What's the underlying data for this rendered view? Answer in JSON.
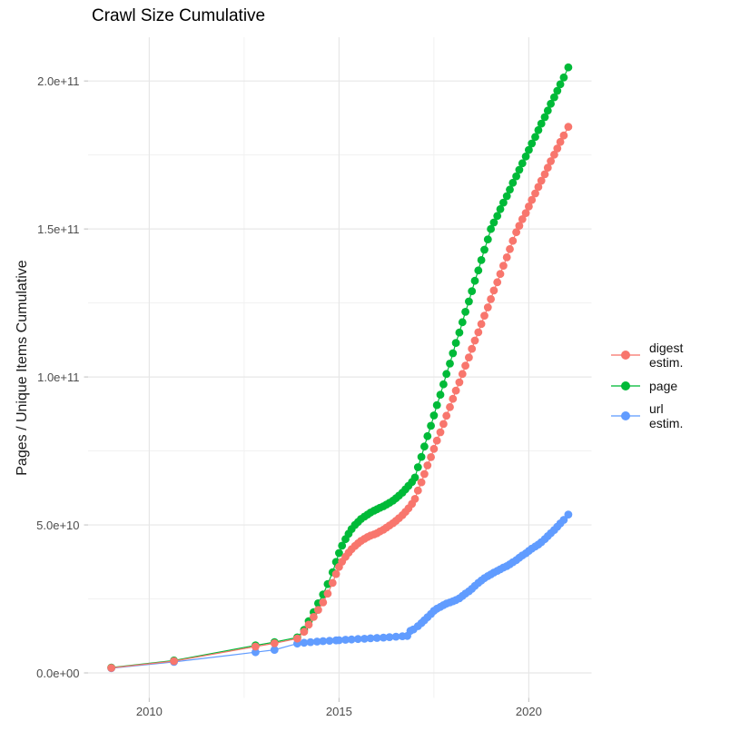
{
  "title": "Crawl Size Cumulative",
  "y_axis": {
    "label": "Pages / Unique Items Cumulative",
    "tick_labels": [
      "0.0e+00",
      "5.0e+10",
      "1.0e+11",
      "1.5e+11",
      "2.0e+11"
    ],
    "tick_values_billions": [
      0,
      50,
      100,
      150,
      200
    ],
    "minor_values_billions": [
      25,
      75,
      125,
      175
    ]
  },
  "x_axis": {
    "tick_labels": [
      "2010",
      "2015",
      "2020"
    ],
    "tick_values": [
      2010,
      2015,
      2020
    ],
    "minor_values": [
      2012.5,
      2017.5
    ]
  },
  "legend": {
    "items": [
      {
        "label": "digest estim.",
        "color": "#F8766D"
      },
      {
        "label": "page",
        "color": "#00BA38"
      },
      {
        "label": "url estim.",
        "color": "#619CFF"
      }
    ]
  },
  "colors": {
    "grid_major": "#e7e7e7",
    "grid_minor": "#f1f1f1",
    "axis_tick": "#c9c9c9",
    "axis_text": "#4d4d4d",
    "digest": "#F8766D",
    "page": "#00BA38",
    "url": "#619CFF"
  },
  "chart_data": {
    "type": "scatter",
    "note": "cumulative crawl size; x = calendar year (fraction), y in billions (1e9) of pages / unique items",
    "xlim": [
      2008.4,
      2021.7
    ],
    "ylim_billions": [
      -10,
      215
    ],
    "grid": "on",
    "legend_position": "right",
    "series": [
      {
        "name": "digest estim.",
        "color": "#F8766D",
        "points": [
          [
            2009.0,
            1.7
          ],
          [
            2010.65,
            4.0
          ],
          [
            2012.8,
            8.9
          ],
          [
            2013.3,
            10.0
          ],
          [
            2013.9,
            11.6
          ],
          [
            2014.08,
            13.9
          ],
          [
            2014.2,
            16.3
          ],
          [
            2014.33,
            18.9
          ],
          [
            2014.45,
            21.3
          ],
          [
            2014.58,
            23.8
          ],
          [
            2014.7,
            26.8
          ],
          [
            2014.83,
            30.4
          ],
          [
            2014.92,
            33.4
          ],
          [
            2015.0,
            35.8
          ],
          [
            2015.08,
            37.6
          ],
          [
            2015.17,
            39.2
          ],
          [
            2015.25,
            40.6
          ],
          [
            2015.33,
            41.8
          ],
          [
            2015.42,
            42.9
          ],
          [
            2015.5,
            43.8
          ],
          [
            2015.58,
            44.6
          ],
          [
            2015.67,
            45.3
          ],
          [
            2015.75,
            45.9
          ],
          [
            2015.83,
            46.4
          ],
          [
            2015.92,
            46.8
          ],
          [
            2016.0,
            47.2
          ],
          [
            2016.08,
            47.8
          ],
          [
            2016.17,
            48.4
          ],
          [
            2016.25,
            49.1
          ],
          [
            2016.33,
            49.8
          ],
          [
            2016.42,
            50.6
          ],
          [
            2016.5,
            51.4
          ],
          [
            2016.58,
            52.3
          ],
          [
            2016.67,
            53.3
          ],
          [
            2016.75,
            54.4
          ],
          [
            2016.83,
            55.6
          ],
          [
            2016.92,
            57.1
          ],
          [
            2017.0,
            58.8
          ],
          [
            2017.08,
            61.6
          ],
          [
            2017.17,
            64.4
          ],
          [
            2017.25,
            67.2
          ],
          [
            2017.33,
            70.1
          ],
          [
            2017.42,
            72.9
          ],
          [
            2017.5,
            75.7
          ],
          [
            2017.58,
            78.5
          ],
          [
            2017.67,
            81.3
          ],
          [
            2017.75,
            84.1
          ],
          [
            2017.83,
            86.9
          ],
          [
            2017.92,
            89.8
          ],
          [
            2018.0,
            92.6
          ],
          [
            2018.08,
            95.4
          ],
          [
            2018.17,
            98.2
          ],
          [
            2018.25,
            101.0
          ],
          [
            2018.33,
            103.8
          ],
          [
            2018.42,
            106.6
          ],
          [
            2018.5,
            109.5
          ],
          [
            2018.58,
            112.3
          ],
          [
            2018.67,
            115.1
          ],
          [
            2018.75,
            117.9
          ],
          [
            2018.83,
            120.7
          ],
          [
            2018.92,
            123.5
          ],
          [
            2019.0,
            126.3
          ],
          [
            2019.08,
            129.2
          ],
          [
            2019.17,
            132.0
          ],
          [
            2019.25,
            134.8
          ],
          [
            2019.33,
            137.6
          ],
          [
            2019.42,
            140.4
          ],
          [
            2019.5,
            143.2
          ],
          [
            2019.58,
            146.0
          ],
          [
            2019.67,
            148.9
          ],
          [
            2019.75,
            151.1
          ],
          [
            2019.83,
            153.3
          ],
          [
            2019.92,
            155.4
          ],
          [
            2020.0,
            157.6
          ],
          [
            2020.08,
            159.8
          ],
          [
            2020.17,
            162.0
          ],
          [
            2020.25,
            164.2
          ],
          [
            2020.33,
            166.3
          ],
          [
            2020.42,
            168.5
          ],
          [
            2020.5,
            170.7
          ],
          [
            2020.58,
            172.9
          ],
          [
            2020.67,
            175.1
          ],
          [
            2020.75,
            177.2
          ],
          [
            2020.83,
            179.4
          ],
          [
            2020.92,
            181.6
          ],
          [
            2021.04,
            184.5
          ]
        ]
      },
      {
        "name": "page",
        "color": "#00BA38",
        "points": [
          [
            2009.0,
            1.8
          ],
          [
            2010.65,
            4.2
          ],
          [
            2012.8,
            9.3
          ],
          [
            2013.3,
            10.4
          ],
          [
            2013.9,
            12.0
          ],
          [
            2014.08,
            14.5
          ],
          [
            2014.2,
            17.5
          ],
          [
            2014.33,
            20.5
          ],
          [
            2014.45,
            23.5
          ],
          [
            2014.58,
            26.5
          ],
          [
            2014.7,
            30.0
          ],
          [
            2014.83,
            34.0
          ],
          [
            2014.92,
            37.5
          ],
          [
            2015.0,
            40.5
          ],
          [
            2015.08,
            43.0
          ],
          [
            2015.17,
            45.2
          ],
          [
            2015.25,
            47.0
          ],
          [
            2015.33,
            48.6
          ],
          [
            2015.42,
            50.0
          ],
          [
            2015.5,
            51.0
          ],
          [
            2015.58,
            52.0
          ],
          [
            2015.67,
            52.8
          ],
          [
            2015.75,
            53.5
          ],
          [
            2015.83,
            54.2
          ],
          [
            2015.92,
            54.8
          ],
          [
            2016.0,
            55.3
          ],
          [
            2016.08,
            55.8
          ],
          [
            2016.17,
            56.3
          ],
          [
            2016.25,
            56.9
          ],
          [
            2016.33,
            57.5
          ],
          [
            2016.42,
            58.2
          ],
          [
            2016.5,
            59.0
          ],
          [
            2016.58,
            59.9
          ],
          [
            2016.67,
            60.9
          ],
          [
            2016.75,
            62.0
          ],
          [
            2016.83,
            63.2
          ],
          [
            2016.92,
            64.5
          ],
          [
            2017.0,
            66.0
          ],
          [
            2017.08,
            69.5
          ],
          [
            2017.17,
            73.0
          ],
          [
            2017.25,
            76.5
          ],
          [
            2017.33,
            80.0
          ],
          [
            2017.42,
            83.5
          ],
          [
            2017.5,
            87.0
          ],
          [
            2017.58,
            90.5
          ],
          [
            2017.67,
            94.0
          ],
          [
            2017.75,
            97.5
          ],
          [
            2017.83,
            101.0
          ],
          [
            2017.92,
            104.5
          ],
          [
            2018.0,
            108.0
          ],
          [
            2018.08,
            111.5
          ],
          [
            2018.17,
            115.0
          ],
          [
            2018.25,
            118.5
          ],
          [
            2018.33,
            122.0
          ],
          [
            2018.42,
            125.5
          ],
          [
            2018.5,
            129.0
          ],
          [
            2018.58,
            132.5
          ],
          [
            2018.67,
            136.0
          ],
          [
            2018.75,
            139.5
          ],
          [
            2018.83,
            143.0
          ],
          [
            2018.92,
            146.5
          ],
          [
            2019.0,
            150.0
          ],
          [
            2019.08,
            152.2
          ],
          [
            2019.17,
            154.4
          ],
          [
            2019.25,
            156.7
          ],
          [
            2019.33,
            158.9
          ],
          [
            2019.42,
            161.1
          ],
          [
            2019.5,
            163.3
          ],
          [
            2019.58,
            165.6
          ],
          [
            2019.67,
            167.8
          ],
          [
            2019.75,
            170.0
          ],
          [
            2019.83,
            172.2
          ],
          [
            2019.92,
            174.5
          ],
          [
            2020.0,
            176.7
          ],
          [
            2020.08,
            178.9
          ],
          [
            2020.17,
            181.1
          ],
          [
            2020.25,
            183.4
          ],
          [
            2020.33,
            185.6
          ],
          [
            2020.42,
            187.8
          ],
          [
            2020.5,
            190.0
          ],
          [
            2020.58,
            192.3
          ],
          [
            2020.67,
            194.5
          ],
          [
            2020.75,
            196.7
          ],
          [
            2020.83,
            198.9
          ],
          [
            2020.92,
            201.2
          ],
          [
            2021.04,
            204.6
          ]
        ]
      },
      {
        "name": "url estim.",
        "color": "#619CFF",
        "points": [
          [
            2009.0,
            1.6
          ],
          [
            2010.65,
            3.7
          ],
          [
            2012.8,
            7.0
          ],
          [
            2013.3,
            7.8
          ],
          [
            2013.9,
            9.9
          ],
          [
            2014.08,
            10.2
          ],
          [
            2014.25,
            10.4
          ],
          [
            2014.42,
            10.6
          ],
          [
            2014.58,
            10.75
          ],
          [
            2014.75,
            10.85
          ],
          [
            2014.92,
            11.0
          ],
          [
            2015.0,
            11.05
          ],
          [
            2015.17,
            11.2
          ],
          [
            2015.33,
            11.3
          ],
          [
            2015.5,
            11.45
          ],
          [
            2015.67,
            11.55
          ],
          [
            2015.83,
            11.7
          ],
          [
            2016.0,
            11.8
          ],
          [
            2016.17,
            11.95
          ],
          [
            2016.33,
            12.1
          ],
          [
            2016.5,
            12.25
          ],
          [
            2016.67,
            12.4
          ],
          [
            2016.8,
            12.5
          ],
          [
            2016.88,
            14.2
          ],
          [
            2016.96,
            14.7
          ],
          [
            2017.08,
            15.8
          ],
          [
            2017.17,
            16.8
          ],
          [
            2017.25,
            17.8
          ],
          [
            2017.33,
            18.8
          ],
          [
            2017.42,
            19.9
          ],
          [
            2017.5,
            21.0
          ],
          [
            2017.58,
            21.7
          ],
          [
            2017.67,
            22.3
          ],
          [
            2017.75,
            22.9
          ],
          [
            2017.83,
            23.4
          ],
          [
            2017.92,
            23.8
          ],
          [
            2018.0,
            24.2
          ],
          [
            2018.08,
            24.6
          ],
          [
            2018.17,
            25.2
          ],
          [
            2018.25,
            26.0
          ],
          [
            2018.33,
            26.8
          ],
          [
            2018.42,
            27.6
          ],
          [
            2018.5,
            28.4
          ],
          [
            2018.58,
            29.4
          ],
          [
            2018.67,
            30.4
          ],
          [
            2018.75,
            31.2
          ],
          [
            2018.83,
            32.0
          ],
          [
            2018.92,
            32.7
          ],
          [
            2019.0,
            33.3
          ],
          [
            2019.08,
            33.9
          ],
          [
            2019.17,
            34.5
          ],
          [
            2019.25,
            35.0
          ],
          [
            2019.33,
            35.6
          ],
          [
            2019.42,
            36.1
          ],
          [
            2019.5,
            36.7
          ],
          [
            2019.58,
            37.4
          ],
          [
            2019.67,
            38.1
          ],
          [
            2019.75,
            38.9
          ],
          [
            2019.83,
            39.7
          ],
          [
            2019.92,
            40.4
          ],
          [
            2020.0,
            41.2
          ],
          [
            2020.08,
            42.0
          ],
          [
            2020.17,
            42.7
          ],
          [
            2020.25,
            43.4
          ],
          [
            2020.33,
            44.2
          ],
          [
            2020.42,
            45.2
          ],
          [
            2020.5,
            46.2
          ],
          [
            2020.58,
            47.2
          ],
          [
            2020.67,
            48.3
          ],
          [
            2020.75,
            49.4
          ],
          [
            2020.83,
            50.5
          ],
          [
            2020.92,
            51.7
          ],
          [
            2021.04,
            53.5
          ]
        ]
      }
    ],
    "draw_order": [
      "url estim.",
      "page",
      "digest estim."
    ]
  }
}
